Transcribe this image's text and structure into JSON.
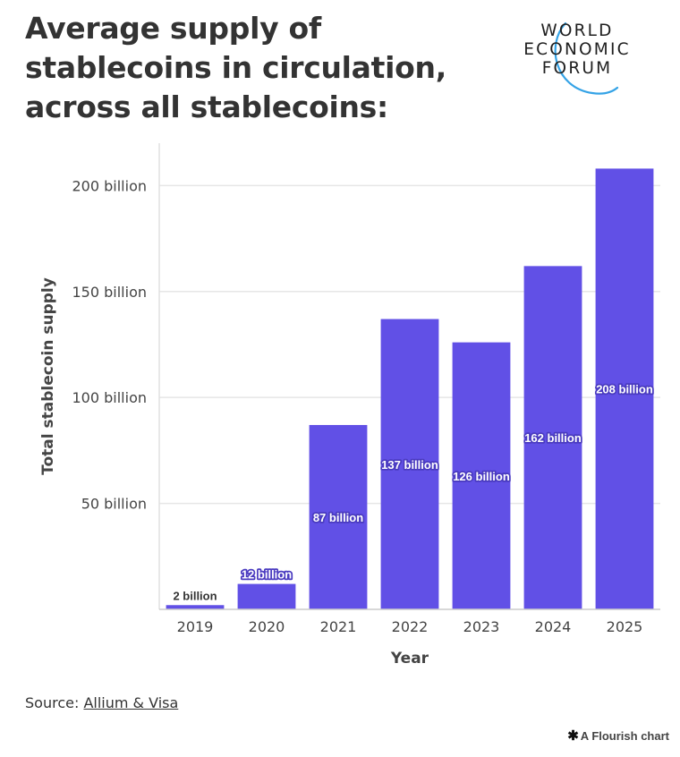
{
  "title": "Average supply of stablecoins in circulation, across all stablecoins:",
  "logo": {
    "line1": "WORLD",
    "line2": "ECONOMIC",
    "line3": "FORUM"
  },
  "source": {
    "label": "Source:",
    "link": "Allium & Visa"
  },
  "footer": {
    "flourish_label": "A Flourish chart"
  },
  "colors": {
    "bar": "#6150e6",
    "label_bg": "#4a3bc0",
    "grid": "#e6e6e6",
    "logo_arc": "#35a3e6"
  },
  "chart_data": {
    "type": "bar",
    "categories": [
      "2019",
      "2020",
      "2021",
      "2022",
      "2023",
      "2024",
      "2025"
    ],
    "values": [
      2,
      12,
      87,
      137,
      126,
      162,
      208
    ],
    "data_labels": [
      "2 billion",
      "12 billion",
      "87 billion",
      "137 billion",
      "126 billion",
      "162 billion",
      "208 billion"
    ],
    "title": "Average supply of stablecoins in circulation, across all stablecoins:",
    "xlabel": "Year",
    "ylabel": "Total stablecoin supply",
    "ylim": [
      0,
      220
    ],
    "yticks": [
      50,
      100,
      150,
      200
    ],
    "ytick_labels": [
      "50 billion",
      "100 billion",
      "150 billion",
      "200 billion"
    ],
    "grid": true,
    "legend": "none"
  }
}
